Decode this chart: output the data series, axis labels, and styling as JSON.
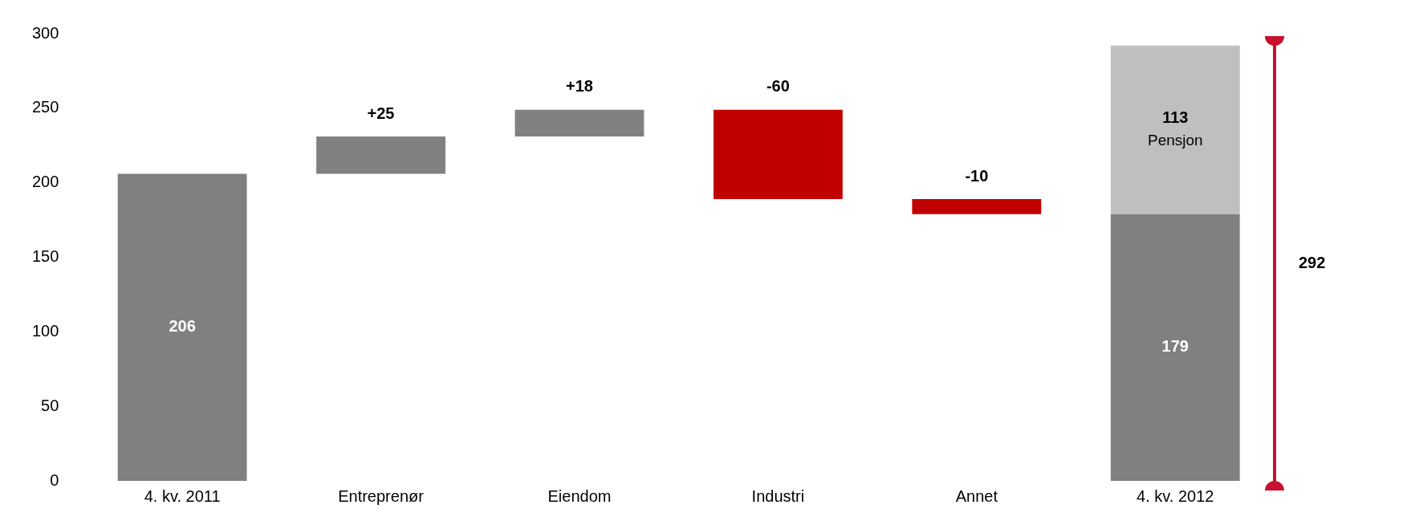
{
  "chart_data": {
    "type": "bar",
    "categories": [
      "4. kv. 2011",
      "Entreprenør",
      "Eiendom",
      "Industri",
      "Annet",
      "4. kv. 2012"
    ],
    "series": [
      {
        "colors": [
          "#808080",
          "#808080",
          "#808080",
          "#c00000",
          "#c00000",
          "#808080"
        ],
        "values": [
          206,
          25,
          18,
          -60,
          -10,
          179
        ],
        "base": [
          0,
          206,
          231,
          249,
          189,
          0
        ],
        "value_labels": [
          "206",
          "+25",
          "+18",
          "-60",
          "-10",
          "179"
        ]
      },
      {
        "name": "Pensjon",
        "color": "#bfbfbf",
        "values": [
          null,
          null,
          null,
          null,
          null,
          113
        ],
        "base": [
          null,
          null,
          null,
          null,
          null,
          179
        ],
        "value_labels": [
          null,
          null,
          null,
          null,
          null,
          "113"
        ]
      }
    ],
    "annotations": [
      "292"
    ],
    "ylim": [
      0,
      300
    ],
    "yticks": [
      0,
      50,
      100,
      150,
      200,
      250,
      300
    ],
    "grid": false,
    "legend": false
  }
}
